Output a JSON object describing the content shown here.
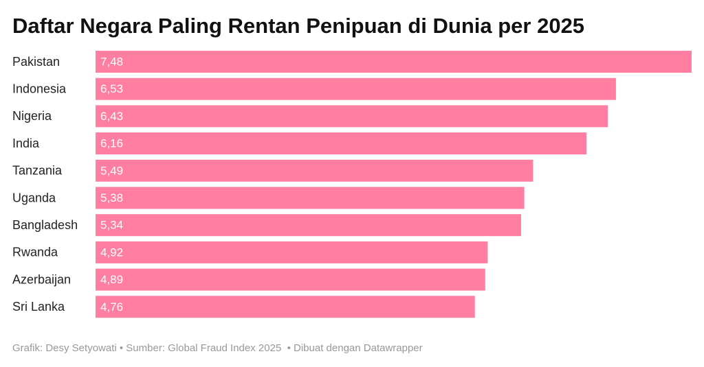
{
  "chart_data": {
    "type": "bar",
    "orientation": "horizontal",
    "title": "Daftar Negara Paling Rentan Penipuan di Dunia per 2025",
    "categories": [
      "Pakistan",
      "Indonesia",
      "Nigeria",
      "India",
      "Tanzania",
      "Uganda",
      "Bangladesh",
      "Rwanda",
      "Azerbaijan",
      "Sri Lanka"
    ],
    "values": [
      7.48,
      6.53,
      6.43,
      6.16,
      5.49,
      5.38,
      5.34,
      4.92,
      4.89,
      4.76
    ],
    "value_labels": [
      "7,48",
      "6,53",
      "6,43",
      "6,16",
      "5,49",
      "5,38",
      "5,34",
      "4,92",
      "4,89",
      "4,76"
    ],
    "color": "#ff7ea1",
    "notes": "Grafik: Desy Setyowati • Sumber: Global Fraud Index 2025  • Dibuat dengan Datawrapper"
  }
}
